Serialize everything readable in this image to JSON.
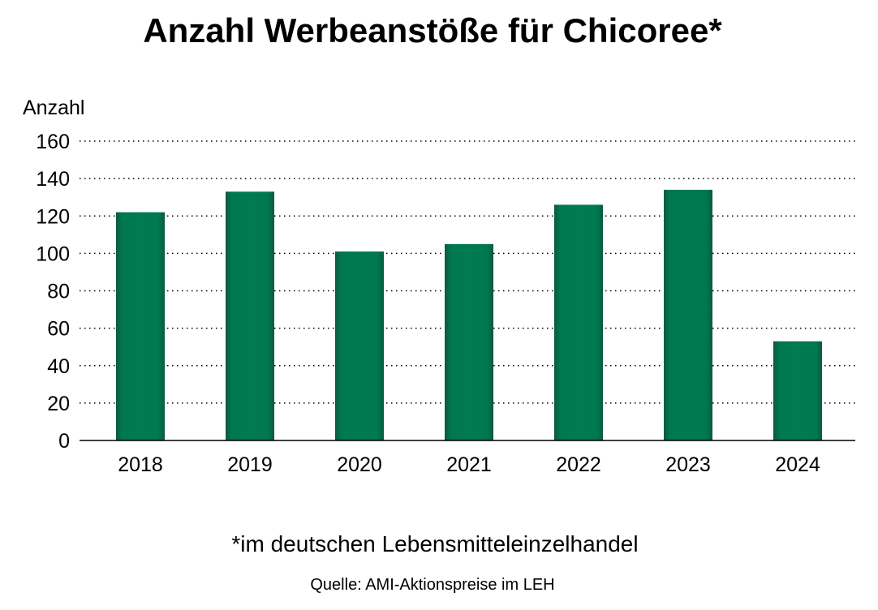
{
  "chart_data": {
    "type": "bar",
    "title": "Anzahl Werbeanstöße für Chicoree*",
    "ylabel": "Anzahl",
    "xlabel": "",
    "categories": [
      "2018",
      "2019",
      "2020",
      "2021",
      "2022",
      "2023",
      "2024"
    ],
    "values": [
      122,
      133,
      101,
      105,
      126,
      134,
      53
    ],
    "ylim": [
      0,
      160
    ],
    "yticks": [
      0,
      20,
      40,
      60,
      80,
      100,
      120,
      140,
      160
    ],
    "grid": true,
    "legend": "none",
    "bar_color": "#007a52",
    "footnote": "*im deutschen Lebensmitteleinzelhandel",
    "source": "Quelle: AMI-Aktionspreise im LEH"
  }
}
